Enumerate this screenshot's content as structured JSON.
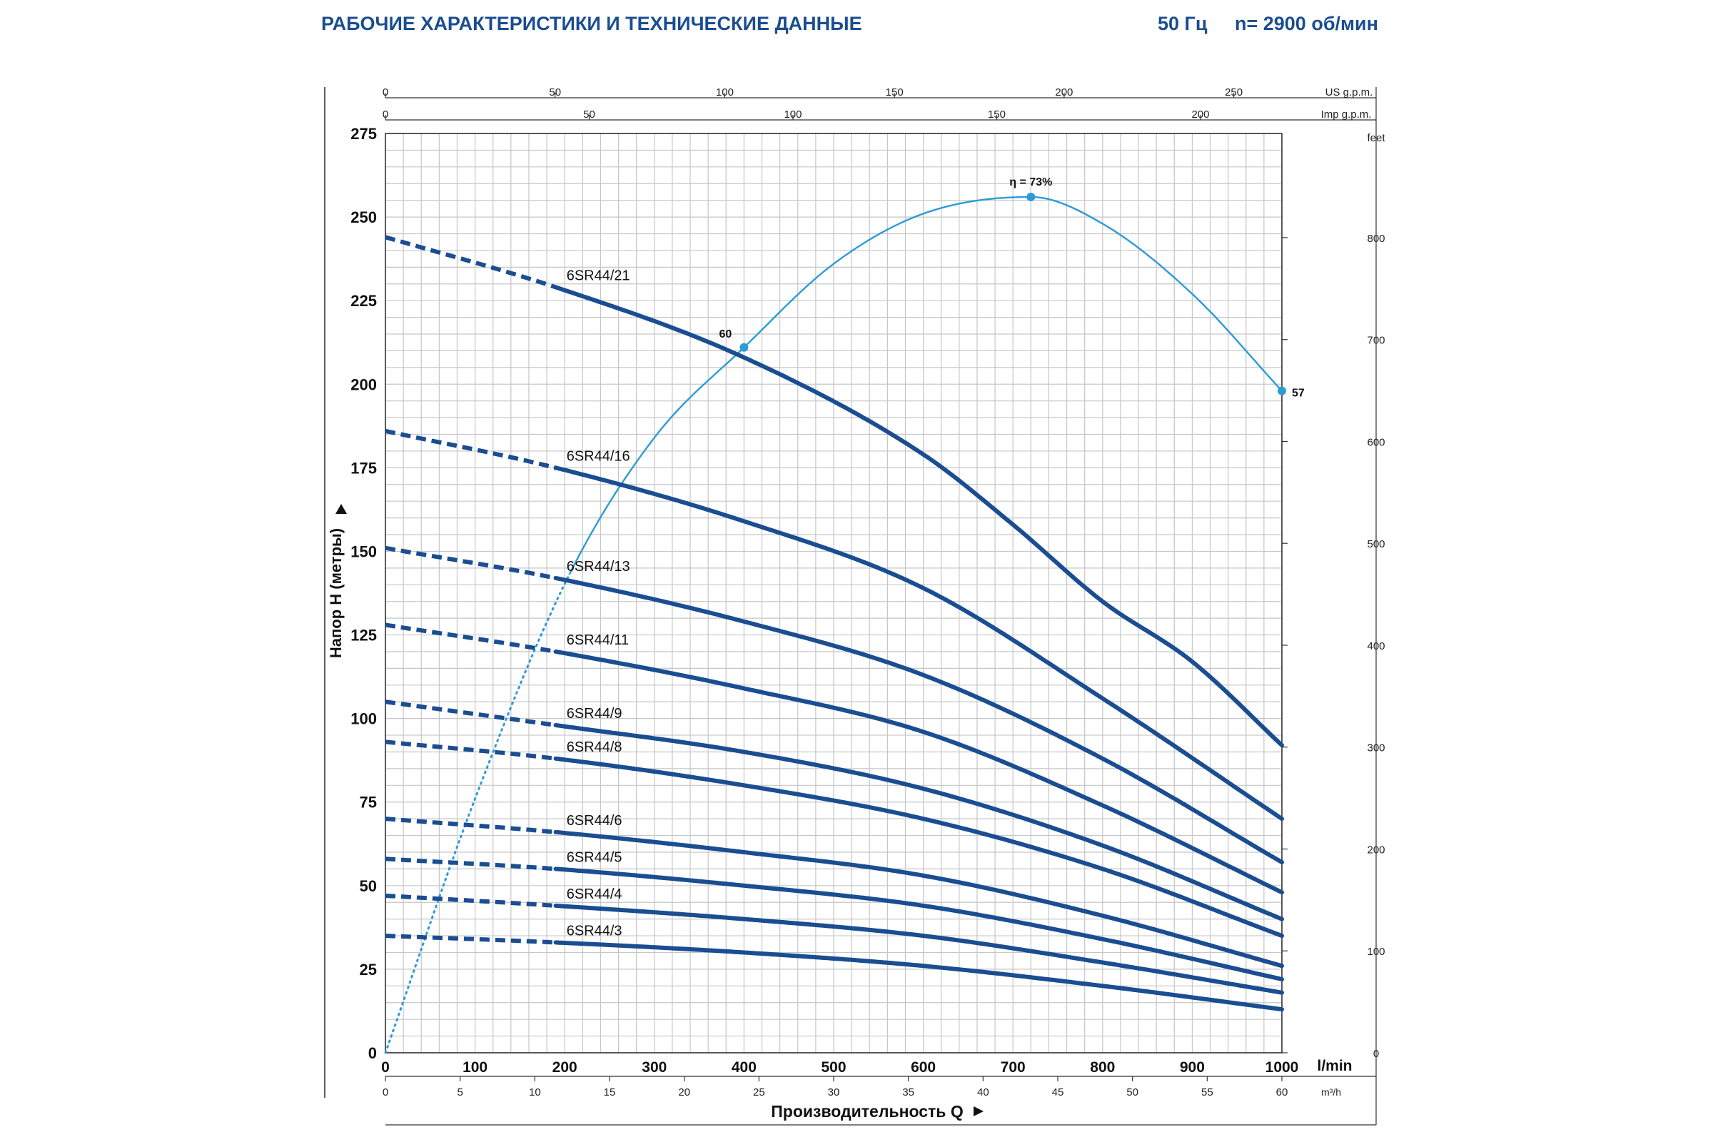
{
  "header": {
    "title": "РАБОЧИЕ ХАРАКТЕРИСТИКИ И ТЕХНИЧЕСКИЕ ДАННЫЕ",
    "frequency": "50 Гц",
    "speed": "n= 2900 об/мин"
  },
  "colors": {
    "curve": "#1a4d91",
    "efficiency": "#2d9bd6",
    "header": "#1a4d91",
    "grid": "#c6c6c6",
    "text": "#222222"
  },
  "chart_data": {
    "type": "line",
    "xlabel": "Производительность Q",
    "ylabel": "Напор H (метры)",
    "x_unit": "l/min",
    "xlim": [
      0,
      1000
    ],
    "ylim": [
      0,
      275
    ],
    "x_ticks": [
      "0",
      "100",
      "200",
      "300",
      "400",
      "500",
      "600",
      "700",
      "800",
      "900",
      "1000"
    ],
    "y_ticks": [
      "0",
      "25",
      "50",
      "75",
      "100",
      "125",
      "150",
      "175",
      "200",
      "225",
      "250",
      "275"
    ],
    "grid": true,
    "axis_m3h": {
      "unit": "m³/h",
      "ticks": [
        {
          "label": "0",
          "value": 0
        },
        {
          "label": "5",
          "value": 5
        },
        {
          "label": "10",
          "value": 10
        },
        {
          "label": "15",
          "value": 15
        },
        {
          "label": "20",
          "value": 20
        },
        {
          "label": "25",
          "value": 25
        },
        {
          "label": "30",
          "value": 30
        },
        {
          "label": "35",
          "value": 35
        },
        {
          "label": "40",
          "value": 40
        },
        {
          "label": "45",
          "value": 45
        },
        {
          "label": "50",
          "value": 50
        },
        {
          "label": "55",
          "value": 55
        },
        {
          "label": "60",
          "value": 60
        }
      ]
    },
    "axis_us_gpm": {
      "unit": "US g.p.m.",
      "ticks": [
        {
          "label": "0",
          "value": 0
        },
        {
          "label": "50",
          "value": 50
        },
        {
          "label": "100",
          "value": 100
        },
        {
          "label": "150",
          "value": 150
        },
        {
          "label": "200",
          "value": 200
        },
        {
          "label": "250",
          "value": 250
        }
      ]
    },
    "axis_imp_gpm": {
      "unit": "Imp g.p.m.",
      "ticks": [
        {
          "label": "0",
          "value": 0
        },
        {
          "label": "50",
          "value": 50
        },
        {
          "label": "100",
          "value": 100
        },
        {
          "label": "150",
          "value": 150
        },
        {
          "label": "200",
          "value": 200
        }
      ]
    },
    "axis_feet": {
      "unit": "feet",
      "ticks": [
        {
          "label": "0",
          "value": 0
        },
        {
          "label": "100",
          "value": 100
        },
        {
          "label": "200",
          "value": 200
        },
        {
          "label": "300",
          "value": 300
        },
        {
          "label": "400",
          "value": 400
        },
        {
          "label": "500",
          "value": 500
        },
        {
          "label": "600",
          "value": 600
        },
        {
          "label": "700",
          "value": 700
        },
        {
          "label": "800",
          "value": 800
        }
      ]
    },
    "series": [
      {
        "name": "6SR44/21",
        "dashed_until": 190,
        "x": [
          0,
          190,
          400,
          600,
          700,
          800,
          900,
          1000
        ],
        "y": [
          244,
          229,
          208,
          179,
          158,
          135,
          117,
          92
        ]
      },
      {
        "name": "6SR44/16",
        "dashed_until": 190,
        "x": [
          0,
          190,
          400,
          600,
          800,
          1000
        ],
        "y": [
          186,
          175,
          159,
          139,
          106,
          70
        ]
      },
      {
        "name": "6SR44/13",
        "dashed_until": 190,
        "x": [
          0,
          190,
          400,
          600,
          800,
          1000
        ],
        "y": [
          151,
          142,
          129,
          113,
          88,
          57
        ]
      },
      {
        "name": "6SR44/11",
        "dashed_until": 190,
        "x": [
          0,
          190,
          400,
          600,
          800,
          1000
        ],
        "y": [
          128,
          120,
          109,
          96,
          74,
          48
        ]
      },
      {
        "name": "6SR44/9",
        "dashed_until": 190,
        "x": [
          0,
          190,
          400,
          600,
          800,
          1000
        ],
        "y": [
          105,
          98,
          90,
          79,
          62,
          40
        ]
      },
      {
        "name": "6SR44/8",
        "dashed_until": 190,
        "x": [
          0,
          190,
          400,
          600,
          800,
          1000
        ],
        "y": [
          93,
          88,
          80,
          70,
          55,
          35
        ]
      },
      {
        "name": "6SR44/6",
        "dashed_until": 190,
        "x": [
          0,
          190,
          400,
          600,
          800,
          1000
        ],
        "y": [
          70,
          66,
          60,
          53,
          41,
          26
        ]
      },
      {
        "name": "6SR44/5",
        "dashed_until": 190,
        "x": [
          0,
          190,
          400,
          600,
          800,
          1000
        ],
        "y": [
          58,
          55,
          50,
          44,
          34,
          22
        ]
      },
      {
        "name": "6SR44/4",
        "dashed_until": 190,
        "x": [
          0,
          190,
          400,
          600,
          800,
          1000
        ],
        "y": [
          47,
          44,
          40,
          35,
          27,
          18
        ]
      },
      {
        "name": "6SR44/3",
        "dashed_until": 190,
        "x": [
          0,
          190,
          400,
          600,
          800,
          1000
        ],
        "y": [
          35,
          33,
          30,
          26,
          20,
          13
        ]
      }
    ],
    "efficiency_curve": {
      "dotted_until": 205,
      "x": [
        0,
        100,
        205,
        300,
        400,
        500,
        600,
        720,
        800,
        900,
        1000
      ],
      "y": [
        0,
        76,
        143,
        184,
        211,
        236,
        251,
        256,
        248,
        227,
        198
      ],
      "points": [
        {
          "x": 400,
          "y": 211,
          "label": "60"
        },
        {
          "x": 720,
          "y": 256,
          "label": "η = 73%"
        },
        {
          "x": 1000,
          "y": 198,
          "label": "57"
        }
      ]
    }
  }
}
